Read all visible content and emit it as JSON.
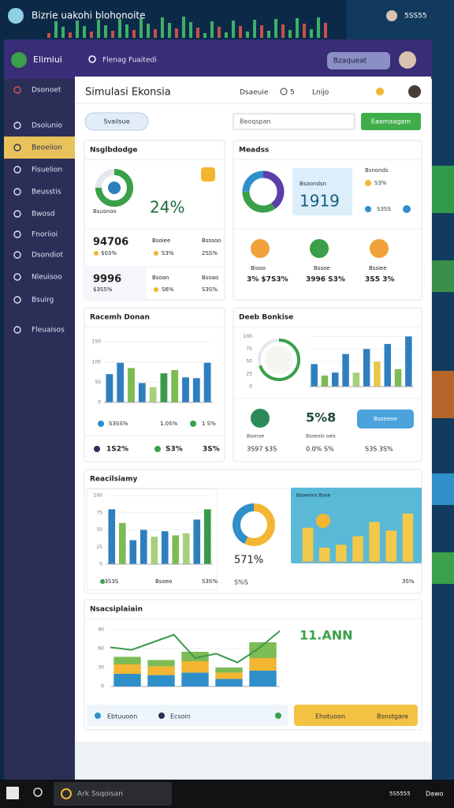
{
  "desktop": {
    "title": "Bizrie uakohi blohonoite",
    "clock": "5SS55",
    "search": "Ark Ssqoisan",
    "tray": [
      "5S5555",
      "Dawo"
    ]
  },
  "header": {
    "app": "Elimiui",
    "search": "Flenag Fuaitedi",
    "button": "Bzaqueat"
  },
  "sidebar": {
    "items": [
      "Dsonoet",
      "Dsoiunio",
      "Beoeiion",
      "Fisuelion",
      "Beusstis",
      "Bwosd",
      "Fnoriioi",
      "Dsondiot",
      "Nleuisoo",
      "Bsuirg",
      "Fleuaisos"
    ],
    "active": 2
  },
  "page": {
    "title": "Simulasi Ekonsia",
    "tabs": [
      "Dsaeuie",
      "5",
      "Lnijo"
    ],
    "filter": "Svailsue",
    "select": "Beoqspan",
    "action": "Eaemaagam"
  },
  "card1": {
    "title": "Nsglbdodge",
    "ring": 75,
    "ring_label": "Bsusnoo",
    "big": "24%",
    "stats": [
      "94706",
      "Bsoiee",
      "Bsssoo",
      "$03%",
      "S3%",
      "2SS%",
      "9996",
      "Bsoan",
      "Bsoao",
      "$3SS%",
      "S6%",
      "S3S%"
    ]
  },
  "card2": {
    "title": "Meadss",
    "donut": [
      40,
      35,
      25
    ],
    "donut_colors": [
      "#5b3ea8",
      "#3aa04a",
      "#2f8fc9"
    ],
    "box_label": "Bsoondsn",
    "big": "1919",
    "side": [
      "Bsnonds",
      "S3%",
      "S3SS"
    ],
    "stats": [
      "Bisoo",
      "Bssoe",
      "Bssiee",
      "3% $7S3%",
      "3996 S3%",
      "3S5 3%"
    ]
  },
  "card3": {
    "title": "Racemh Donan",
    "ylim": [
      0,
      160
    ],
    "yticks": [
      0,
      50,
      100,
      150
    ],
    "values": [
      70,
      98,
      85,
      48,
      38,
      72,
      80,
      62,
      60,
      98
    ],
    "colors": [
      "#2f7fbf",
      "#2f7fbf",
      "#7dbb54",
      "#2f7fbf",
      "#a8d07a",
      "#3a9a4c",
      "#7dbb54",
      "#2f7fbf",
      "#2f7fbf",
      "#2f7fbf"
    ],
    "stats": [
      "S3SS%",
      "1.0S%",
      "1 S%",
      "1S2%",
      "S3%",
      "3S%"
    ]
  },
  "card4": {
    "title": "Deeb Bonkise",
    "ring": 70,
    "ylim": [
      0,
      110
    ],
    "yticks": [
      0,
      25,
      50,
      75,
      100
    ],
    "values": [
      45,
      22,
      28,
      65,
      28,
      75,
      50,
      85,
      35,
      100
    ],
    "colors": [
      "#2f7fbf",
      "#7dbb54",
      "#2f7fbf",
      "#2f7fbf",
      "#a8d07a",
      "#2f7fbf",
      "#e6c84a",
      "#2f7fbf",
      "#7dbb54",
      "#2f7fbf"
    ],
    "big": "5%8",
    "button": "Bsoeeoe",
    "labels": [
      "Bsonoe",
      "Bsoeoio oeis"
    ],
    "stats": [
      "3S97 $3S",
      "0.0% S%",
      "S3S 3S%"
    ]
  },
  "card5": {
    "title": "Reacilsiamy",
    "ylim": [
      0,
      100
    ],
    "yticks": [
      0,
      25,
      50,
      75,
      100
    ],
    "values": [
      80,
      60,
      35,
      50,
      40,
      48,
      42,
      45,
      65,
      80
    ],
    "colors": [
      "#2f7fbf",
      "#7dbb54",
      "#2f7fbf",
      "#2f7fbf",
      "#a8d07a",
      "#2f7fbf",
      "#7dbb54",
      "#a8d07a",
      "#2f7fbf",
      "#3a9a4c"
    ],
    "pie": [
      57.1,
      42.9
    ],
    "pie_colors": [
      "#f2b632",
      "#2f8fc9"
    ],
    "pie_label": "571%",
    "pie_sub": "S%S",
    "image_title": "Bsoeoios Bsoe",
    "image_values": [
      60,
      25,
      30,
      45,
      70,
      55,
      85
    ],
    "stats": [
      "S3S3S",
      "Bsoeo",
      "S3S%",
      "3S%"
    ]
  },
  "card6": {
    "title": "Nsacsiplaiain",
    "ylim": [
      0,
      100
    ],
    "yticks": [
      0,
      30,
      60,
      90
    ],
    "stack": [
      [
        20,
        18,
        22,
        12,
        25
      ],
      [
        15,
        14,
        18,
        10,
        20
      ],
      [
        12,
        10,
        15,
        8,
        25
      ]
    ],
    "stack_colors": [
      "#2f8fc9",
      "#f2b632",
      "#7dbb54"
    ],
    "line": [
      62,
      58,
      70,
      82,
      45,
      52,
      38,
      60,
      88
    ],
    "line_color": "#3a9a4c",
    "big": "11.ANN",
    "footer": [
      "Ebtuuoon",
      "Ecsoin",
      "Ehotuoon",
      "Bsnstgare"
    ]
  }
}
